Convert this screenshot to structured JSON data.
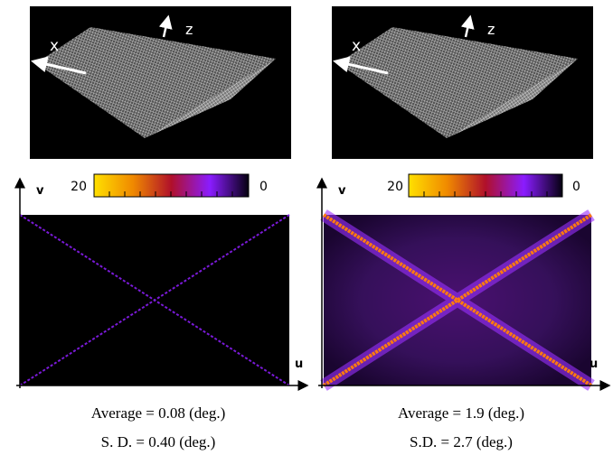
{
  "panels": [
    {
      "mesh_axes": {
        "x": "x",
        "z": "z"
      },
      "map": {
        "v": "v",
        "u": "u",
        "colorbar": {
          "max": 20,
          "min": 0
        }
      },
      "caption": [
        "Average = 0.08 (deg.)",
        "S. D. = 0.40 (deg.)"
      ]
    },
    {
      "mesh_axes": {
        "x": "x",
        "z": "z"
      },
      "map": {
        "v": "v",
        "u": "u",
        "colorbar": {
          "max": 20,
          "min": 0
        }
      },
      "caption": [
        "Average = 1.9 (deg.)",
        "S.D. = 2.7 (deg.)"
      ]
    }
  ]
}
